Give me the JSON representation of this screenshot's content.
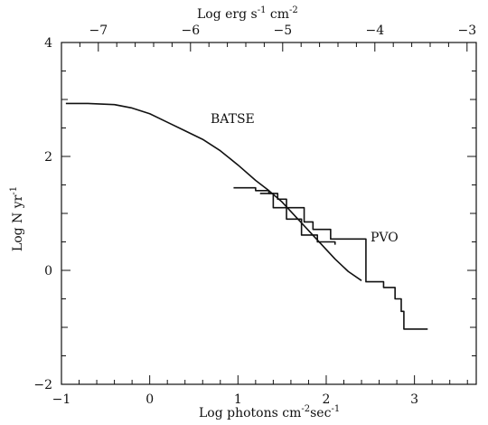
{
  "chart_data": {
    "type": "line",
    "xlabel": "Log photons cm",
    "xlabel_sup": "-2",
    "xlabel_tail": "sec",
    "xlabel_tail_sup": "-1",
    "ylabel": "Log N yr",
    "ylabel_sup": "-1",
    "top_axis_label": "Log erg s",
    "top_axis_label_sup1": "-1",
    "top_axis_label_mid": " cm",
    "top_axis_label_sup2": "-2",
    "xlim": [
      -1,
      3.7
    ],
    "ylim": [
      -2,
      4
    ],
    "top_xlim": [
      -7.4,
      -2.9
    ],
    "x_ticks_major": [
      -1,
      0,
      1,
      2,
      3
    ],
    "x_ticks_labels": [
      "−1",
      "0",
      "1",
      "2",
      "3"
    ],
    "y_ticks_major": [
      -2,
      0,
      2,
      4
    ],
    "y_ticks_labels": [
      "−2",
      "0",
      "2",
      "4"
    ],
    "top_ticks_major": [
      -7,
      -6,
      -5,
      -4,
      -3
    ],
    "top_ticks_labels": [
      "−7",
      "−6",
      "−5",
      "−4",
      "−3"
    ],
    "annotations": [
      {
        "text": "BATSE",
        "x": 0.75,
        "y": 3.45
      },
      {
        "text": "PVO",
        "x": 2.5,
        "y": 0.75
      }
    ],
    "grid": false,
    "series": [
      {
        "name": "BATSE",
        "style": "smooth",
        "x": [
          -0.95,
          -0.7,
          -0.4,
          -0.2,
          0.0,
          0.2,
          0.4,
          0.6,
          0.8,
          1.0,
          1.2,
          1.35,
          1.5,
          1.65,
          1.8,
          1.95,
          2.1,
          2.25,
          2.4
        ],
        "y": [
          2.93,
          2.93,
          2.91,
          2.85,
          2.75,
          2.6,
          2.45,
          2.3,
          2.1,
          1.85,
          1.58,
          1.4,
          1.2,
          0.95,
          0.7,
          0.45,
          0.2,
          -0.02,
          -0.18
        ]
      },
      {
        "name": "PVO",
        "style": "step",
        "x": [
          0.95,
          1.2,
          1.35,
          1.45,
          1.55,
          1.75,
          1.85,
          2.05,
          2.45,
          2.65,
          2.78,
          2.85,
          2.88,
          3.15
        ],
        "y": [
          1.45,
          1.4,
          1.35,
          1.25,
          1.1,
          0.85,
          0.72,
          0.55,
          -0.2,
          -0.3,
          -0.5,
          -0.72,
          -1.03,
          -1.03
        ]
      },
      {
        "name": "",
        "style": "step",
        "x": [
          1.25,
          1.4,
          1.55,
          1.72,
          1.9,
          2.1
        ],
        "y": [
          1.35,
          1.1,
          0.9,
          0.62,
          0.5,
          0.45
        ]
      }
    ]
  }
}
